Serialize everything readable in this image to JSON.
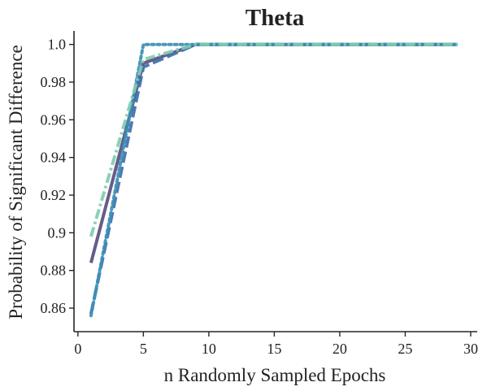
{
  "chart_data": {
    "type": "line",
    "title": "Theta",
    "xlabel": "n Randomly Sampled Epochs",
    "ylabel": "Probability of Significant Difference",
    "xlim": [
      -0.3,
      30.5
    ],
    "ylim": [
      0.8475,
      1.0072
    ],
    "xticks": [
      0,
      5,
      10,
      15,
      20,
      25,
      30
    ],
    "xtick_labels": [
      "0",
      "5",
      "10",
      "15",
      "20",
      "25",
      "30"
    ],
    "yticks": [
      0.86,
      0.88,
      0.9,
      0.92,
      0.94,
      0.96,
      0.98,
      1.0
    ],
    "ytick_labels": [
      "0.86",
      "0.88",
      "0.9",
      "0.92",
      "0.94",
      "0.96",
      "0.98",
      "1.0"
    ],
    "grid": false,
    "legend": "none",
    "series": [
      {
        "color": "#5a4e7c",
        "style": "solid",
        "x": [
          1,
          5,
          9,
          29
        ],
        "values": [
          0.884,
          0.99,
          1.0,
          1.0
        ]
      },
      {
        "color": "#3f6fb0",
        "style": "dashed",
        "x": [
          1,
          5,
          9,
          29
        ],
        "values": [
          0.857,
          0.988,
          1.0,
          1.0
        ]
      },
      {
        "color": "#3b8fb4",
        "style": "dotted",
        "x": [
          1,
          5,
          9,
          29
        ],
        "values": [
          0.856,
          1.0,
          1.0,
          1.0
        ]
      },
      {
        "color": "#7dcdb2",
        "style": "dashdot",
        "x": [
          1,
          5,
          9,
          29
        ],
        "values": [
          0.898,
          0.992,
          1.0,
          1.0
        ]
      }
    ]
  }
}
